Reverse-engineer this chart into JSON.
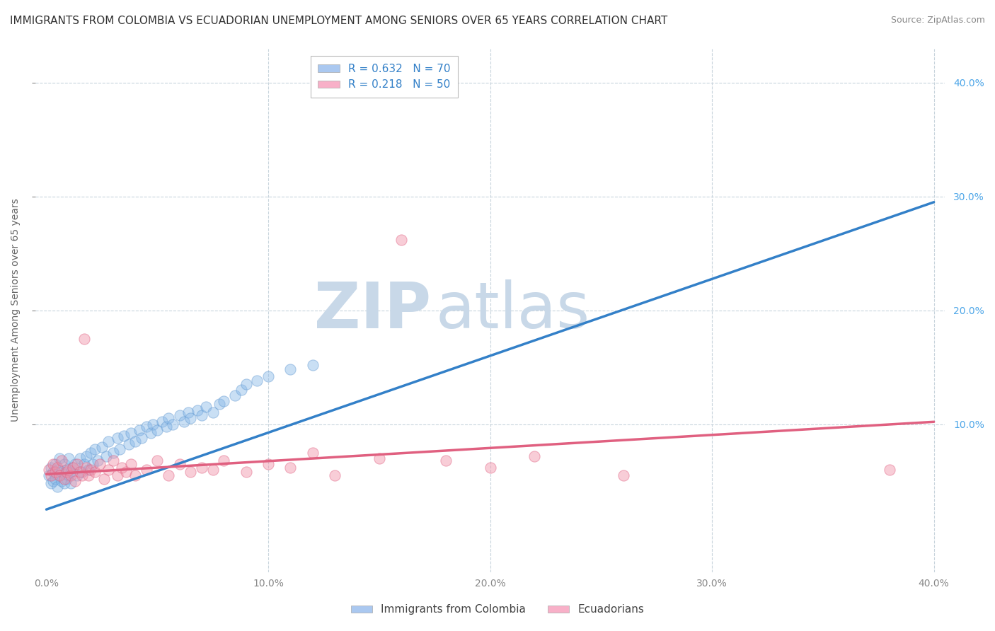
{
  "title": "IMMIGRANTS FROM COLOMBIA VS ECUADORIAN UNEMPLOYMENT AMONG SENIORS OVER 65 YEARS CORRELATION CHART",
  "source": "Source: ZipAtlas.com",
  "ylabel": "Unemployment Among Seniors over 65 years",
  "ytick_values": [
    0.1,
    0.2,
    0.3,
    0.4
  ],
  "xtick_values": [
    0.0,
    0.1,
    0.2,
    0.3,
    0.4
  ],
  "xlim": [
    -0.005,
    0.405
  ],
  "ylim": [
    -0.03,
    0.43
  ],
  "legend_entries": [
    {
      "label": "R = 0.632   N = 70",
      "color": "#aac8f0"
    },
    {
      "label": "R = 0.218   N = 50",
      "color": "#f8b0c8"
    }
  ],
  "watermark_zip": "ZIP",
  "watermark_atlas": "atlas",
  "watermark_color": "#c8d8e8",
  "series_colombia": {
    "color": "#88b8e8",
    "edge_color": "#6098d0",
    "R": 0.632,
    "N": 70,
    "x": [
      0.001,
      0.002,
      0.002,
      0.003,
      0.003,
      0.004,
      0.004,
      0.005,
      0.005,
      0.006,
      0.006,
      0.007,
      0.007,
      0.008,
      0.008,
      0.009,
      0.009,
      0.01,
      0.01,
      0.011,
      0.011,
      0.012,
      0.013,
      0.014,
      0.015,
      0.016,
      0.017,
      0.018,
      0.019,
      0.02,
      0.021,
      0.022,
      0.023,
      0.025,
      0.027,
      0.028,
      0.03,
      0.032,
      0.033,
      0.035,
      0.037,
      0.038,
      0.04,
      0.042,
      0.043,
      0.045,
      0.047,
      0.048,
      0.05,
      0.052,
      0.054,
      0.055,
      0.057,
      0.06,
      0.062,
      0.064,
      0.065,
      0.068,
      0.07,
      0.072,
      0.075,
      0.078,
      0.08,
      0.085,
      0.088,
      0.09,
      0.095,
      0.1,
      0.11,
      0.12
    ],
    "y": [
      0.055,
      0.048,
      0.062,
      0.05,
      0.058,
      0.052,
      0.065,
      0.045,
      0.06,
      0.055,
      0.07,
      0.05,
      0.058,
      0.048,
      0.065,
      0.052,
      0.06,
      0.055,
      0.07,
      0.048,
      0.058,
      0.062,
      0.065,
      0.055,
      0.07,
      0.058,
      0.065,
      0.072,
      0.06,
      0.075,
      0.065,
      0.078,
      0.068,
      0.08,
      0.072,
      0.085,
      0.075,
      0.088,
      0.078,
      0.09,
      0.082,
      0.092,
      0.085,
      0.095,
      0.088,
      0.098,
      0.092,
      0.1,
      0.095,
      0.102,
      0.098,
      0.105,
      0.1,
      0.108,
      0.102,
      0.11,
      0.105,
      0.112,
      0.108,
      0.115,
      0.11,
      0.118,
      0.12,
      0.125,
      0.13,
      0.135,
      0.138,
      0.142,
      0.148,
      0.152
    ]
  },
  "series_ecuador": {
    "color": "#f090a8",
    "edge_color": "#e06080",
    "R": 0.218,
    "N": 50,
    "x": [
      0.001,
      0.002,
      0.003,
      0.004,
      0.005,
      0.006,
      0.007,
      0.008,
      0.009,
      0.01,
      0.011,
      0.012,
      0.013,
      0.014,
      0.015,
      0.016,
      0.017,
      0.018,
      0.019,
      0.02,
      0.022,
      0.024,
      0.026,
      0.028,
      0.03,
      0.032,
      0.034,
      0.036,
      0.038,
      0.04,
      0.045,
      0.05,
      0.055,
      0.06,
      0.065,
      0.07,
      0.075,
      0.08,
      0.09,
      0.1,
      0.11,
      0.12,
      0.13,
      0.15,
      0.16,
      0.18,
      0.2,
      0.22,
      0.26,
      0.38
    ],
    "y": [
      0.06,
      0.055,
      0.065,
      0.058,
      0.062,
      0.055,
      0.068,
      0.052,
      0.058,
      0.06,
      0.055,
      0.062,
      0.05,
      0.065,
      0.058,
      0.055,
      0.175,
      0.062,
      0.055,
      0.06,
      0.058,
      0.065,
      0.052,
      0.06,
      0.068,
      0.055,
      0.062,
      0.058,
      0.065,
      0.055,
      0.06,
      0.068,
      0.055,
      0.065,
      0.058,
      0.062,
      0.06,
      0.068,
      0.058,
      0.065,
      0.062,
      0.075,
      0.055,
      0.07,
      0.262,
      0.068,
      0.062,
      0.072,
      0.055,
      0.06
    ]
  },
  "regression_colombia": {
    "x": [
      0.0,
      0.4
    ],
    "y": [
      0.025,
      0.295
    ],
    "color": "#3380c8",
    "linewidth": 2.5
  },
  "regression_ecuador": {
    "x": [
      0.0,
      0.4
    ],
    "y": [
      0.056,
      0.102
    ],
    "color": "#e06080",
    "linewidth": 2.5
  },
  "grid_color": "#c8d4dc",
  "background_color": "#ffffff",
  "title_fontsize": 11,
  "axis_label_fontsize": 10,
  "tick_fontsize": 10,
  "legend_fontsize": 11
}
